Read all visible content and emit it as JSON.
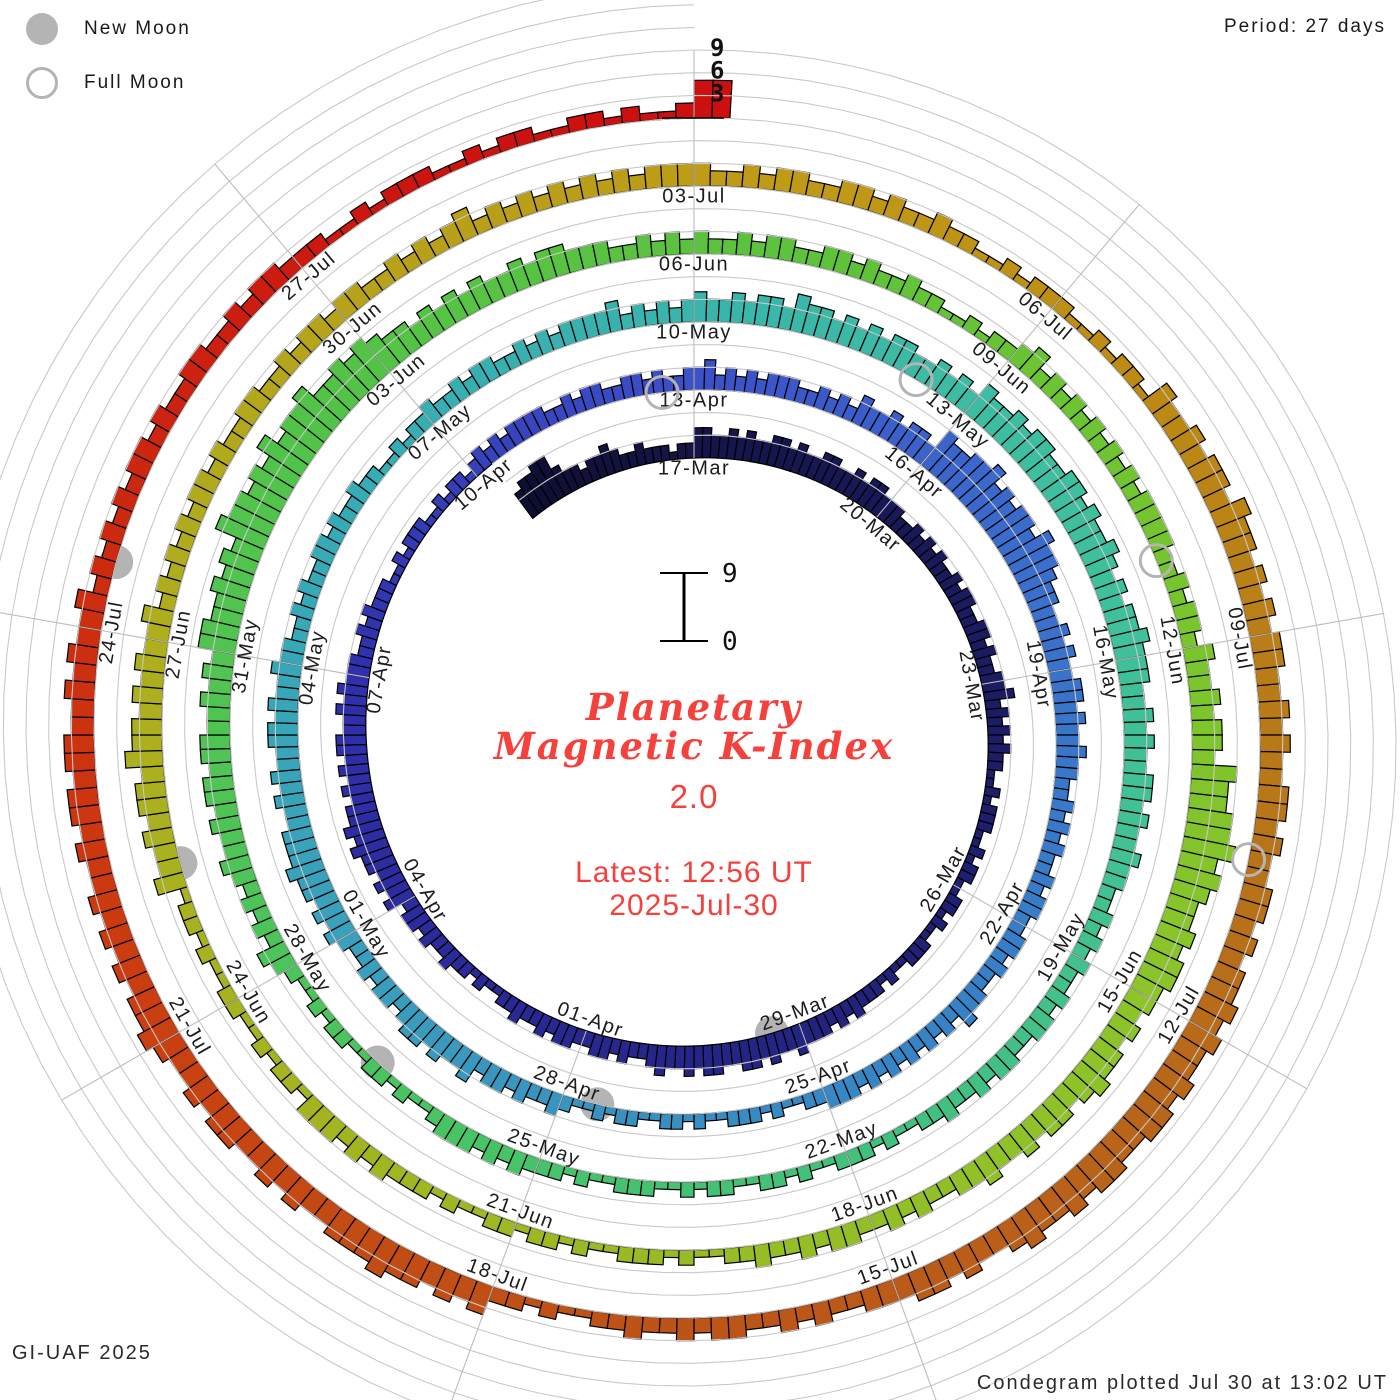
{
  "header": {
    "period_label": "Period: 27 days"
  },
  "legend": {
    "new_moon_label": "New Moon",
    "full_moon_label": "Full Moon"
  },
  "footer": {
    "left": "GI-UAF 2025",
    "right": "Condegram plotted Jul 30 at 13:02 UT"
  },
  "center": {
    "title_line1": "Planetary",
    "title_line2": "Magnetic K-Index",
    "version": "2.0",
    "latest_line1": "Latest:  12:56 UT",
    "latest_line2": "2025-Jul-30"
  },
  "axis": {
    "ring_scale_labels": [
      "3",
      "6",
      "9"
    ],
    "bar_scale_top": "9",
    "bar_scale_bottom": "0"
  },
  "chart_data": {
    "type": "bar",
    "subtype": "polar_spiral_condegram",
    "title": "Planetary Magnetic K-Index 2.0",
    "period_days": 27,
    "hours_per_bar": 3,
    "kp_range": [
      0,
      9
    ],
    "radial_ticks": [
      3,
      6,
      9
    ],
    "series_start": "2025-03-14",
    "series_end": "2025-07-30",
    "t0_reference_date": "17-Mar",
    "values_start_offset_days": -2.75,
    "kp_values": "455664332334322322212244334343344343344334344333223232322323322332322334232323221121222112122112212112221121222323233343343443344343343223233223323223221121223223233243434454544343434433434333223232221121222112122123232333322323322332322334232323332232324334344365566756566576654433434334434334332232323223233223323223342323232323233322112122211212211221211232232332433434432332322343434454443343433443433433223232233232232211212232232332232323333423232343343443544343434433434354454554455454454343445444334343344343343322323232232332233232232211212221121221122121122211212223232333211212211221211234232323433434434433434355445454766565756675565654434343433434433322323232232332233232232211212234232323232323333223233243343443655667565445455443434454344343343322323223323223221121222112122122112122232323331221211221121221433434435443434334232323233232233223233233223232342323232323233332232332233232232211212221121221433434435443434344334343344343344343445454454554455454454334344333223232233232232211212243434454443343433443433454434343433434434433434334232323233232233223233222112122211212211221211255",
    "date_labels": [
      [
        0,
        "17-Mar"
      ],
      [
        3,
        "20-Mar"
      ],
      [
        6,
        "23-Mar"
      ],
      [
        9,
        "26-Mar"
      ],
      [
        12,
        "29-Mar"
      ],
      [
        15,
        "01-Apr"
      ],
      [
        18,
        "04-Apr"
      ],
      [
        21,
        "07-Apr"
      ],
      [
        24,
        "10-Apr"
      ],
      [
        27,
        "13-Apr"
      ],
      [
        30,
        "16-Apr"
      ],
      [
        33,
        "19-Apr"
      ],
      [
        36,
        "22-Apr"
      ],
      [
        39,
        "25-Apr"
      ],
      [
        42,
        "28-Apr"
      ],
      [
        45,
        "01-May"
      ],
      [
        48,
        "04-May"
      ],
      [
        51,
        "07-May"
      ],
      [
        54,
        "10-May"
      ],
      [
        57,
        "13-May"
      ],
      [
        60,
        "16-May"
      ],
      [
        63,
        "19-May"
      ],
      [
        66,
        "22-May"
      ],
      [
        69,
        "25-May"
      ],
      [
        72,
        "28-May"
      ],
      [
        75,
        "31-May"
      ],
      [
        78,
        "03-Jun"
      ],
      [
        81,
        "06-Jun"
      ],
      [
        84,
        "09-Jun"
      ],
      [
        87,
        "12-Jun"
      ],
      [
        90,
        "15-Jun"
      ],
      [
        93,
        "18-Jun"
      ],
      [
        96,
        "21-Jun"
      ],
      [
        99,
        "24-Jun"
      ],
      [
        102,
        "27-Jun"
      ],
      [
        105,
        "30-Jun"
      ],
      [
        108,
        "03-Jul"
      ],
      [
        111,
        "06-Jul"
      ],
      [
        114,
        "09-Jul"
      ],
      [
        117,
        "12-Jul"
      ],
      [
        120,
        "15-Jul"
      ],
      [
        123,
        "18-Jul"
      ],
      [
        126,
        "21-Jul"
      ],
      [
        129,
        "24-Jul"
      ],
      [
        132,
        "27-Jul"
      ]
    ],
    "new_moons": [
      {
        "date": "2025-03-29",
        "t": 12.4
      },
      {
        "date": "2025-04-27",
        "t": 41.6
      },
      {
        "date": "2025-05-27",
        "t": 70.8
      },
      {
        "date": "2025-06-25",
        "t": 100.2
      },
      {
        "date": "2025-07-24",
        "t": 129.5
      }
    ],
    "full_moons": [
      {
        "date": "2025-04-13",
        "t": 26.6
      },
      {
        "date": "2025-05-12",
        "t": 56.4
      },
      {
        "date": "2025-06-11",
        "t": 86.2
      },
      {
        "date": "2025-07-10",
        "t": 115.7
      }
    ],
    "color_stops": [
      [
        -3,
        "#0d0d30"
      ],
      [
        0,
        "#15154a"
      ],
      [
        7,
        "#1d1d68"
      ],
      [
        14,
        "#26268a"
      ],
      [
        21,
        "#3030ac"
      ],
      [
        27,
        "#3c50c8"
      ],
      [
        32,
        "#3a70cc"
      ],
      [
        38,
        "#3684c6"
      ],
      [
        45,
        "#3aa0bc"
      ],
      [
        50,
        "#35acb6"
      ],
      [
        54,
        "#3ab4ac"
      ],
      [
        58,
        "#3ebfa0"
      ],
      [
        62,
        "#42c194"
      ],
      [
        66,
        "#42c07c"
      ],
      [
        70,
        "#48c464"
      ],
      [
        74,
        "#50c454"
      ],
      [
        78,
        "#53c346"
      ],
      [
        82,
        "#5ec23c"
      ],
      [
        86,
        "#74c52e"
      ],
      [
        90,
        "#8cc42a"
      ],
      [
        94,
        "#96bc26"
      ],
      [
        98,
        "#a4b420"
      ],
      [
        102,
        "#aeae1e"
      ],
      [
        106,
        "#b8a01a"
      ],
      [
        109,
        "#c09a16"
      ],
      [
        112,
        "#bc8a14"
      ],
      [
        115,
        "#b87818"
      ],
      [
        118,
        "#b8641a"
      ],
      [
        121,
        "#bc5618"
      ],
      [
        124,
        "#c24c14"
      ],
      [
        127,
        "#cc3a10"
      ],
      [
        130,
        "#cc2810"
      ],
      [
        133,
        "#cc1410"
      ],
      [
        135,
        "#cc0f0f"
      ]
    ],
    "moon_color": "#b4b4b4",
    "grid_arc_color": "#c9c9c9",
    "grid_radial_color": "#bdbdbd",
    "bar_outline_color": "#000000",
    "label_color": "#1b1b1b",
    "accent_red": "#f4413c"
  }
}
